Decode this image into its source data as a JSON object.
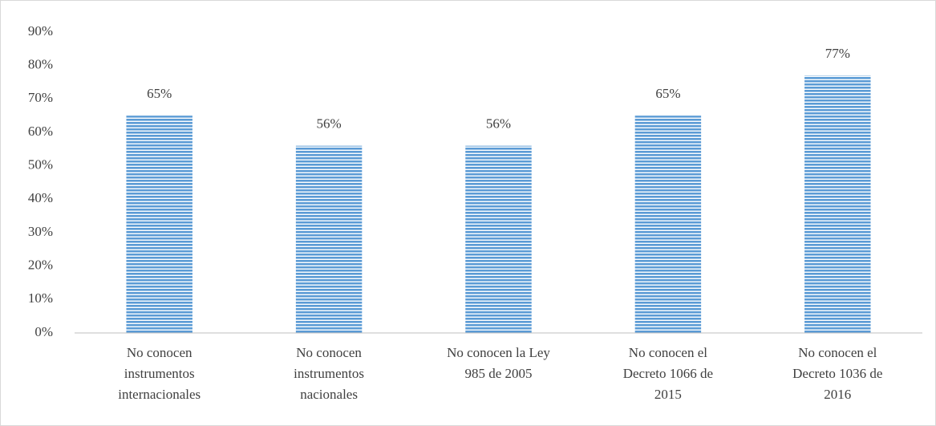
{
  "chart_data": {
    "type": "bar",
    "categories": [
      [
        "No conocen",
        "instrumentos",
        "internacionales"
      ],
      [
        "No conocen",
        "instrumentos",
        "nacionales"
      ],
      [
        "No conocen la Ley",
        "985 de 2005"
      ],
      [
        "No conocen el",
        "Decreto 1066 de",
        "2015"
      ],
      [
        "No conocen el",
        "Decreto 1036 de",
        "2016"
      ]
    ],
    "values": [
      65,
      56,
      56,
      65,
      77
    ],
    "value_labels": [
      "65%",
      "56%",
      "56%",
      "65%",
      "77%"
    ],
    "color": "#5b9bd5",
    "ylim": [
      0,
      90
    ],
    "yticks": [
      {
        "value": 0,
        "label": "0%"
      },
      {
        "value": 10,
        "label": "10%"
      },
      {
        "value": 20,
        "label": "20%"
      },
      {
        "value": 30,
        "label": "30%"
      },
      {
        "value": 40,
        "label": "40%"
      },
      {
        "value": 50,
        "label": "50%"
      },
      {
        "value": 60,
        "label": "60%"
      },
      {
        "value": 70,
        "label": "70%"
      },
      {
        "value": 80,
        "label": "80%"
      },
      {
        "value": 90,
        "label": "90%"
      }
    ],
    "grid": false
  }
}
